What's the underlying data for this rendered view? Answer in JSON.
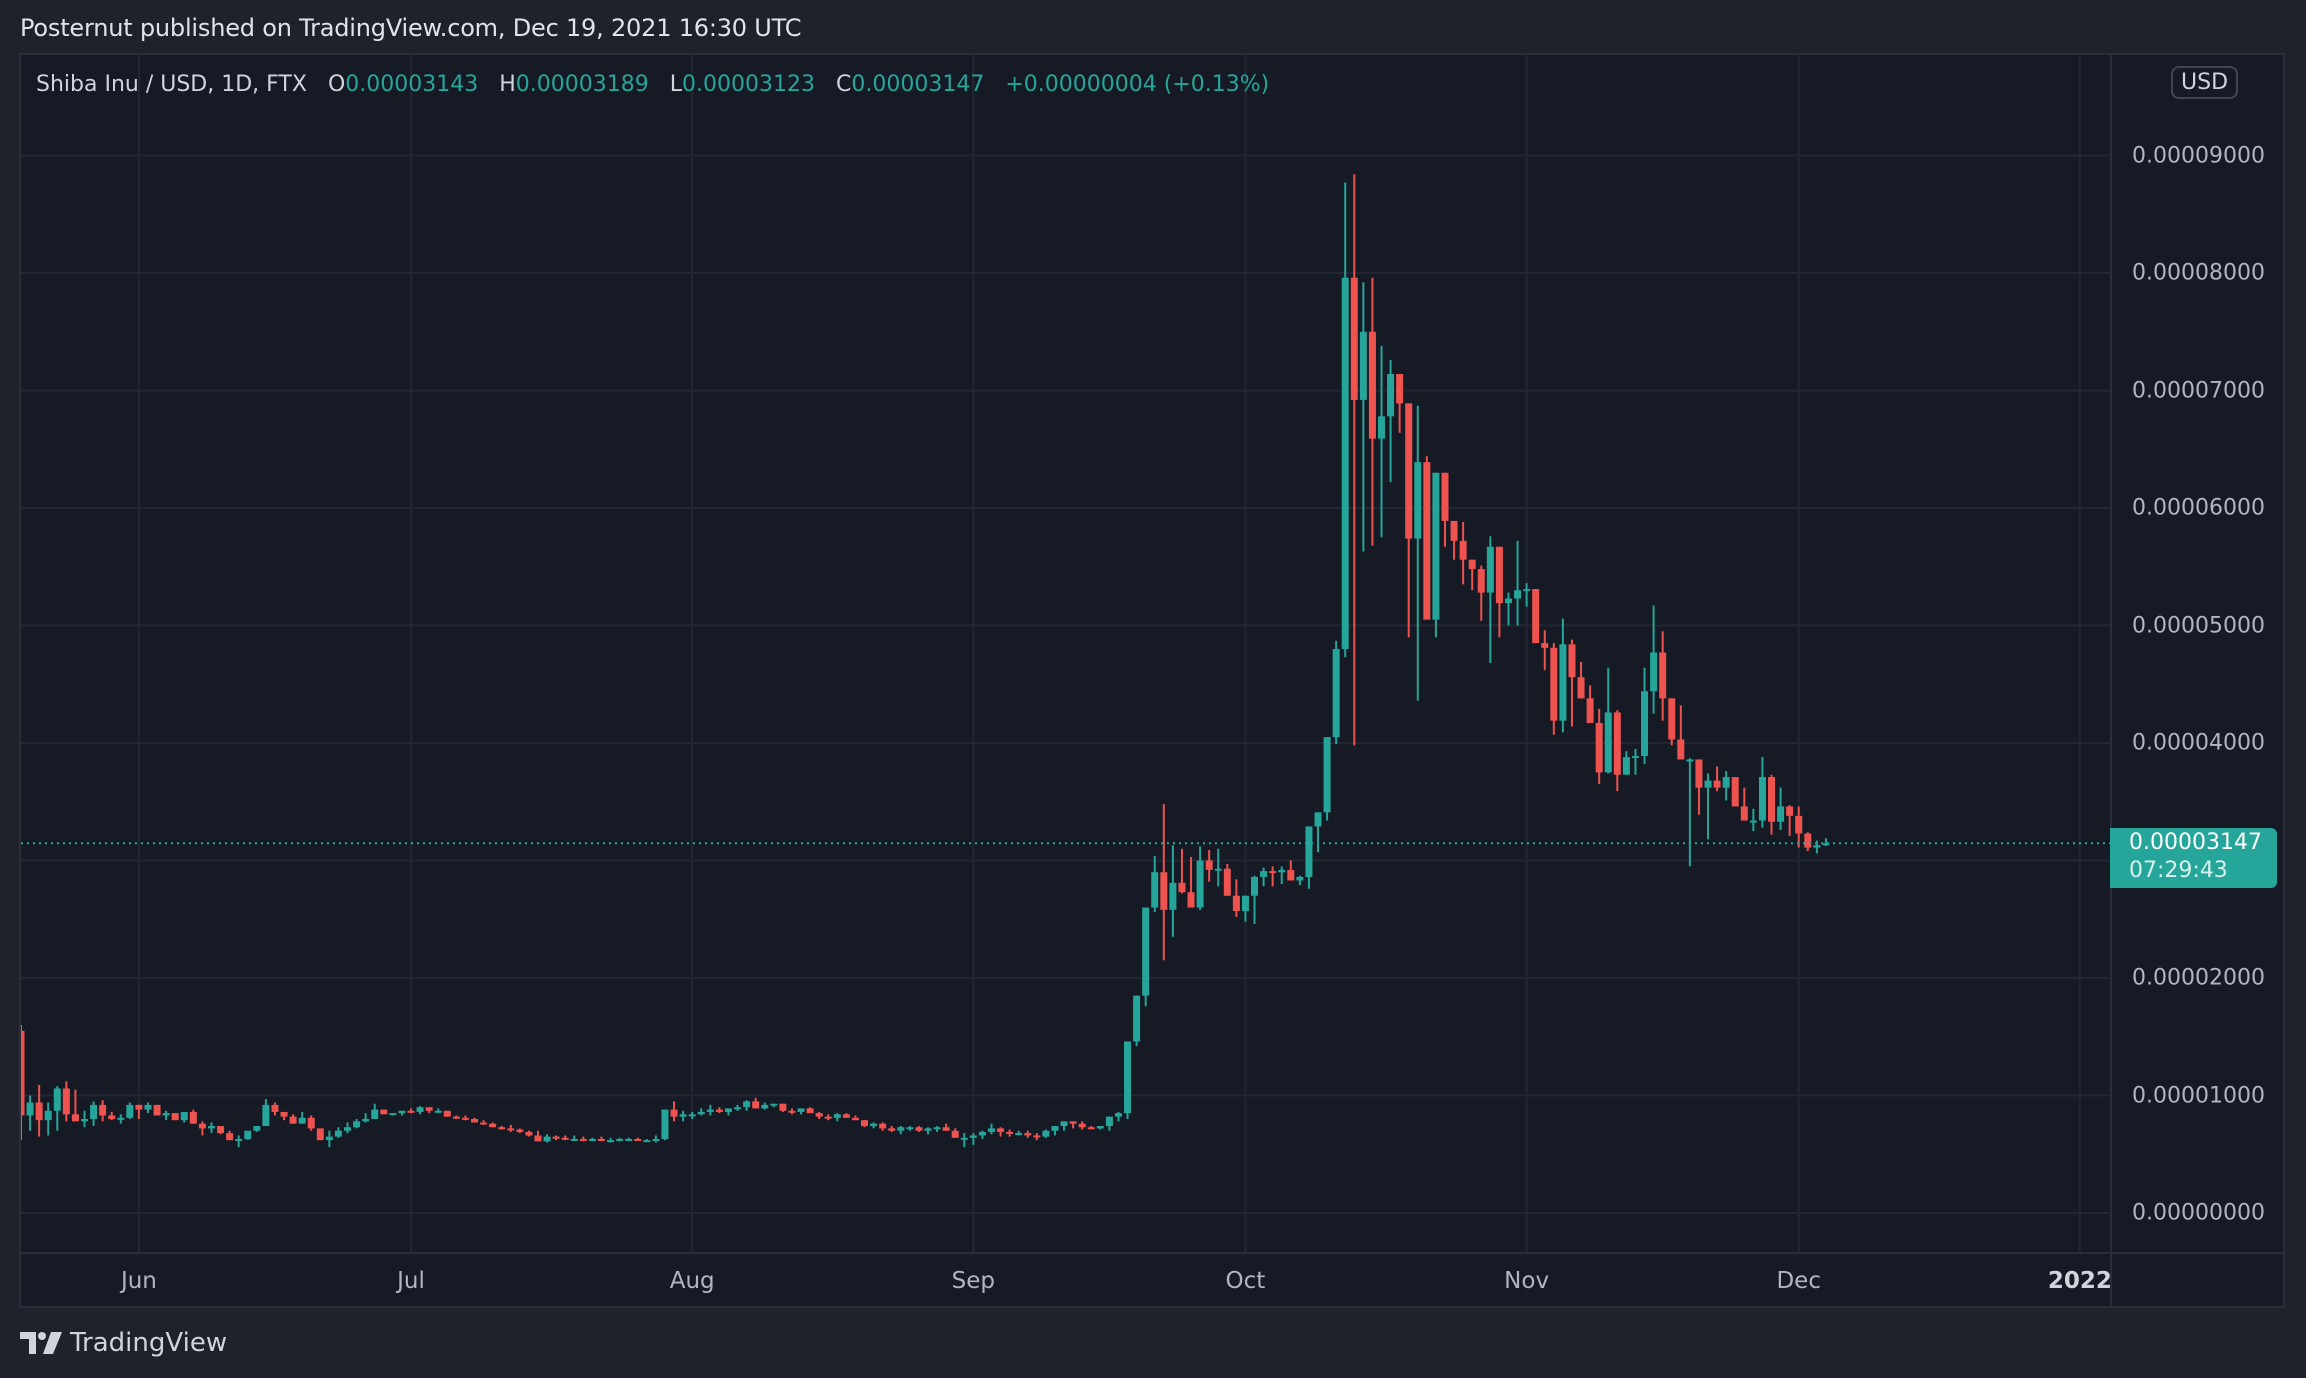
{
  "header": {
    "published": "Posternut published on TradingView.com, Dec 19, 2021 16:30 UTC"
  },
  "legend": {
    "symbol": "Shiba Inu / USD, 1D, FTX",
    "open_label": "O",
    "open": "0.00003143",
    "high_label": "H",
    "high": "0.00003189",
    "low_label": "L",
    "low": "0.00003123",
    "close_label": "C",
    "close": "0.00003147",
    "change": "+0.00000004 (+0.13%)"
  },
  "currency_badge": "USD",
  "last_price": {
    "price": "0.00003147",
    "countdown": "07:29:43"
  },
  "footer": {
    "brand": "TradingView"
  },
  "colors": {
    "up": "#26a69a",
    "down": "#ef5350",
    "grid": "#232733",
    "bg": "#161a25",
    "last_line": "#26a69a"
  },
  "chart_data": {
    "type": "candlestick",
    "title": "Shiba Inu / USD, 1D, FTX",
    "xlabel": "",
    "ylabel": "USD",
    "ylim": [
      -3.3e-06,
      9.85e-05
    ],
    "grid": true,
    "price_unit_note": "OHLC values below are in units of 1e-8 USD (e.g. 3147 = 0.00003147)",
    "y_ticks": [
      "0.00009000",
      "0.00008000",
      "0.00007000",
      "0.00006000",
      "0.00005000",
      "0.00004000",
      "0.00003000",
      "0.00002000",
      "0.00001000",
      "0.00000000"
    ],
    "y_tick_values": [
      9000,
      8000,
      7000,
      6000,
      5000,
      4000,
      3000,
      2000,
      1000,
      0
    ],
    "x_ticks": [
      {
        "label": "Jun",
        "day": 13
      },
      {
        "label": "Jul",
        "day": 43
      },
      {
        "label": "Aug",
        "day": 74
      },
      {
        "label": "Sep",
        "day": 105
      },
      {
        "label": "Oct",
        "day": 135
      },
      {
        "label": "Nov",
        "day": 166
      },
      {
        "label": "Dec",
        "day": 196
      },
      {
        "label": "2022",
        "day": 227,
        "bold": true
      }
    ],
    "start_date": "2021-05-19",
    "end_date": "2021-12-19",
    "last_close": 3147,
    "candles": [
      [
        1550,
        1600,
        620,
        830
      ],
      [
        830,
        1000,
        700,
        940
      ],
      [
        940,
        1090,
        650,
        790
      ],
      [
        790,
        940,
        660,
        870
      ],
      [
        870,
        1080,
        700,
        1060
      ],
      [
        1060,
        1120,
        780,
        840
      ],
      [
        840,
        1050,
        800,
        780
      ],
      [
        780,
        870,
        730,
        800
      ],
      [
        800,
        950,
        740,
        920
      ],
      [
        920,
        960,
        780,
        830
      ],
      [
        830,
        860,
        790,
        800
      ],
      [
        800,
        840,
        760,
        810
      ],
      [
        810,
        940,
        800,
        920
      ],
      [
        920,
        920,
        800,
        880
      ],
      [
        880,
        940,
        850,
        920
      ],
      [
        920,
        920,
        850,
        830
      ],
      [
        830,
        870,
        790,
        850
      ],
      [
        850,
        850,
        800,
        790
      ],
      [
        790,
        840,
        770,
        860
      ],
      [
        860,
        880,
        810,
        760
      ],
      [
        760,
        780,
        660,
        720
      ],
      [
        720,
        770,
        680,
        740
      ],
      [
        740,
        740,
        670,
        680
      ],
      [
        680,
        700,
        620,
        620
      ],
      [
        620,
        660,
        560,
        630
      ],
      [
        630,
        700,
        620,
        700
      ],
      [
        700,
        740,
        690,
        740
      ],
      [
        740,
        970,
        740,
        920
      ],
      [
        920,
        940,
        830,
        860
      ],
      [
        860,
        860,
        790,
        820
      ],
      [
        820,
        840,
        760,
        760
      ],
      [
        760,
        860,
        760,
        810
      ],
      [
        810,
        830,
        700,
        720
      ],
      [
        720,
        710,
        640,
        620
      ],
      [
        620,
        700,
        560,
        650
      ],
      [
        650,
        730,
        640,
        700
      ],
      [
        700,
        770,
        680,
        730
      ],
      [
        730,
        800,
        720,
        780
      ],
      [
        780,
        850,
        770,
        800
      ],
      [
        800,
        930,
        800,
        880
      ],
      [
        880,
        880,
        840,
        840
      ],
      [
        840,
        850,
        830,
        850
      ],
      [
        850,
        870,
        830,
        870
      ],
      [
        870,
        890,
        850,
        860
      ],
      [
        860,
        910,
        840,
        900
      ],
      [
        900,
        900,
        850,
        870
      ],
      [
        870,
        890,
        850,
        870
      ],
      [
        870,
        870,
        820,
        820
      ],
      [
        820,
        830,
        800,
        810
      ],
      [
        810,
        830,
        790,
        800
      ],
      [
        800,
        810,
        780,
        770
      ],
      [
        770,
        790,
        750,
        760
      ],
      [
        760,
        770,
        730,
        730
      ],
      [
        730,
        740,
        710,
        720
      ],
      [
        720,
        750,
        690,
        710
      ],
      [
        710,
        720,
        680,
        690
      ],
      [
        690,
        700,
        650,
        660
      ],
      [
        660,
        700,
        610,
        610
      ],
      [
        610,
        670,
        600,
        650
      ],
      [
        650,
        660,
        620,
        640
      ],
      [
        640,
        660,
        620,
        630
      ],
      [
        630,
        660,
        620,
        630
      ],
      [
        630,
        650,
        610,
        620
      ],
      [
        620,
        640,
        610,
        630
      ],
      [
        630,
        650,
        610,
        620
      ],
      [
        620,
        640,
        600,
        620
      ],
      [
        620,
        640,
        610,
        630
      ],
      [
        630,
        640,
        620,
        630
      ],
      [
        630,
        640,
        620,
        620
      ],
      [
        620,
        630,
        610,
        620
      ],
      [
        620,
        660,
        600,
        630
      ],
      [
        630,
        850,
        620,
        880
      ],
      [
        880,
        950,
        780,
        820
      ],
      [
        820,
        870,
        780,
        840
      ],
      [
        840,
        860,
        800,
        840
      ],
      [
        840,
        890,
        830,
        860
      ],
      [
        860,
        920,
        830,
        880
      ],
      [
        880,
        900,
        850,
        860
      ],
      [
        860,
        890,
        830,
        890
      ],
      [
        890,
        920,
        870,
        900
      ],
      [
        900,
        960,
        870,
        950
      ],
      [
        950,
        980,
        890,
        890
      ],
      [
        890,
        940,
        880,
        920
      ],
      [
        920,
        930,
        900,
        930
      ],
      [
        930,
        910,
        860,
        870
      ],
      [
        870,
        890,
        840,
        860
      ],
      [
        860,
        890,
        840,
        890
      ],
      [
        890,
        900,
        850,
        850
      ],
      [
        850,
        860,
        800,
        820
      ],
      [
        820,
        840,
        790,
        810
      ],
      [
        810,
        850,
        780,
        840
      ],
      [
        840,
        850,
        810,
        810
      ],
      [
        810,
        830,
        790,
        790
      ],
      [
        790,
        790,
        730,
        740
      ],
      [
        740,
        770,
        720,
        760
      ],
      [
        760,
        770,
        700,
        720
      ],
      [
        720,
        740,
        690,
        700
      ],
      [
        700,
        740,
        670,
        730
      ],
      [
        730,
        740,
        700,
        730
      ],
      [
        730,
        740,
        690,
        700
      ],
      [
        700,
        730,
        670,
        720
      ],
      [
        720,
        740,
        690,
        730
      ],
      [
        730,
        760,
        700,
        700
      ],
      [
        700,
        720,
        640,
        640
      ],
      [
        640,
        680,
        560,
        640
      ],
      [
        640,
        680,
        580,
        660
      ],
      [
        660,
        700,
        630,
        690
      ],
      [
        690,
        760,
        670,
        720
      ],
      [
        720,
        730,
        650,
        690
      ],
      [
        690,
        710,
        650,
        680
      ],
      [
        680,
        700,
        660,
        680
      ],
      [
        680,
        700,
        640,
        660
      ],
      [
        660,
        680,
        620,
        650
      ],
      [
        650,
        710,
        640,
        700
      ],
      [
        700,
        740,
        660,
        740
      ],
      [
        740,
        770,
        700,
        780
      ],
      [
        780,
        760,
        720,
        760
      ],
      [
        760,
        780,
        710,
        730
      ],
      [
        730,
        740,
        720,
        720
      ],
      [
        720,
        740,
        710,
        740
      ],
      [
        740,
        790,
        700,
        820
      ],
      [
        820,
        860,
        780,
        850
      ],
      [
        850,
        1350,
        800,
        1460
      ],
      [
        1460,
        1700,
        1420,
        1850
      ],
      [
        1850,
        2600,
        1760,
        2600
      ],
      [
        2600,
        3040,
        2560,
        2900
      ],
      [
        2900,
        3480,
        2150,
        2580
      ],
      [
        2580,
        3130,
        2350,
        2810
      ],
      [
        2810,
        3100,
        2720,
        2730
      ],
      [
        2730,
        3030,
        2630,
        2600
      ],
      [
        2600,
        3120,
        2580,
        3000
      ],
      [
        3000,
        3090,
        2820,
        2920
      ],
      [
        2920,
        3100,
        2780,
        2930
      ],
      [
        2930,
        2970,
        2710,
        2700
      ],
      [
        2700,
        2840,
        2520,
        2570
      ],
      [
        2570,
        2700,
        2480,
        2700
      ],
      [
        2700,
        2870,
        2460,
        2860
      ],
      [
        2860,
        2940,
        2780,
        2910
      ],
      [
        2910,
        2950,
        2780,
        2900
      ],
      [
        2900,
        2950,
        2800,
        2920
      ],
      [
        2920,
        3000,
        2830,
        2830
      ],
      [
        2830,
        2870,
        2790,
        2860
      ],
      [
        2860,
        3230,
        2760,
        3290
      ],
      [
        3290,
        3400,
        3070,
        3410
      ],
      [
        3410,
        4000,
        3340,
        4050
      ],
      [
        4050,
        4870,
        3990,
        4800
      ],
      [
        4800,
        8770,
        4730,
        7960
      ],
      [
        7960,
        8840,
        3980,
        6920
      ],
      [
        6920,
        7920,
        5630,
        7500
      ],
      [
        7500,
        7960,
        5680,
        6590
      ],
      [
        6590,
        7380,
        5750,
        6780
      ],
      [
        6780,
        7260,
        6220,
        7140
      ],
      [
        7140,
        7080,
        6640,
        6890
      ],
      [
        6890,
        6860,
        4900,
        5740
      ],
      [
        5740,
        6870,
        4360,
        6390
      ],
      [
        6390,
        6440,
        5430,
        5050
      ],
      [
        5050,
        6290,
        4900,
        6300
      ],
      [
        6300,
        6280,
        5670,
        5890
      ],
      [
        5890,
        5890,
        5560,
        5720
      ],
      [
        5720,
        5880,
        5350,
        5560
      ],
      [
        5560,
        5530,
        5300,
        5480
      ],
      [
        5480,
        5510,
        5040,
        5280
      ],
      [
        5280,
        5760,
        4680,
        5670
      ],
      [
        5670,
        5670,
        4900,
        5190
      ],
      [
        5190,
        5280,
        5000,
        5230
      ],
      [
        5230,
        5720,
        5000,
        5300
      ],
      [
        5300,
        5360,
        5160,
        5310
      ],
      [
        5310,
        5300,
        4980,
        4850
      ],
      [
        4850,
        4960,
        4620,
        4810
      ],
      [
        4810,
        4850,
        4070,
        4190
      ],
      [
        4190,
        5060,
        4090,
        4840
      ],
      [
        4840,
        4880,
        4140,
        4560
      ],
      [
        4560,
        4690,
        4390,
        4380
      ],
      [
        4380,
        4490,
        4230,
        4170
      ],
      [
        4170,
        4290,
        3650,
        3750
      ],
      [
        3750,
        4640,
        3740,
        4260
      ],
      [
        4260,
        4280,
        3590,
        3730
      ],
      [
        3730,
        3930,
        3750,
        3880
      ],
      [
        3880,
        3950,
        3730,
        3890
      ],
      [
        3890,
        4640,
        3820,
        4440
      ],
      [
        4440,
        5170,
        4250,
        4770
      ],
      [
        4770,
        4950,
        4190,
        4380
      ],
      [
        4380,
        4310,
        3980,
        4030
      ],
      [
        4030,
        4320,
        3990,
        3860
      ],
      [
        3860,
        3870,
        2950,
        3860
      ],
      [
        3860,
        3680,
        3390,
        3620
      ],
      [
        3620,
        3740,
        3180,
        3680
      ],
      [
        3680,
        3800,
        3590,
        3620
      ],
      [
        3620,
        3760,
        3510,
        3710
      ],
      [
        3710,
        3700,
        3460,
        3460
      ],
      [
        3460,
        3620,
        3360,
        3340
      ],
      [
        3340,
        3440,
        3250,
        3340
      ],
      [
        3340,
        3880,
        3280,
        3710
      ],
      [
        3710,
        3730,
        3220,
        3330
      ],
      [
        3330,
        3620,
        3260,
        3460
      ],
      [
        3460,
        3470,
        3210,
        3380
      ],
      [
        3380,
        3460,
        3110,
        3230
      ],
      [
        3230,
        3240,
        3080,
        3110
      ],
      [
        3110,
        3170,
        3060,
        3130
      ],
      [
        3143,
        3189,
        3123,
        3147
      ]
    ]
  }
}
